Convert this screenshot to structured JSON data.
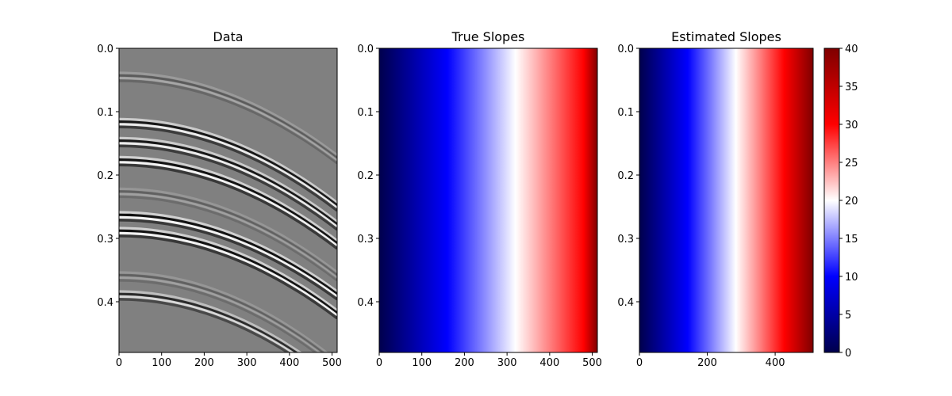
{
  "chart_data": [
    {
      "type": "heatmap",
      "title": "Data",
      "colormap": "gray",
      "xlim": [
        0,
        512
      ],
      "ylim": [
        0.48,
        0.0
      ],
      "xticks": [
        0,
        100,
        200,
        300,
        400,
        500
      ],
      "yticks": [
        0.0,
        0.1,
        0.2,
        0.3,
        0.4
      ],
      "xtick_labels": [
        "0",
        "100",
        "200",
        "300",
        "400",
        "500"
      ],
      "ytick_labels": [
        "0.0",
        "0.1",
        "0.2",
        "0.3",
        "0.4"
      ],
      "events": [
        {
          "t0": 0.045,
          "t_end": 0.175,
          "amplitude": 0.3
        },
        {
          "t0": 0.118,
          "t_end": 0.25,
          "amplitude": 0.85
        },
        {
          "t0": 0.148,
          "t_end": 0.28,
          "amplitude": 0.85
        },
        {
          "t0": 0.178,
          "t_end": 0.31,
          "amplitude": 0.9
        },
        {
          "t0": 0.228,
          "t_end": 0.36,
          "amplitude": 0.25
        },
        {
          "t0": 0.265,
          "t_end": 0.39,
          "amplitude": 0.9
        },
        {
          "t0": 0.29,
          "t_end": 0.42,
          "amplitude": 0.9
        },
        {
          "t0": 0.36,
          "t_end": 0.5,
          "amplitude": 0.25
        },
        {
          "t0": 0.39,
          "t_end": 0.53,
          "amplitude": 0.7
        }
      ]
    },
    {
      "type": "heatmap",
      "title": "True Slopes",
      "colormap": "seismic",
      "vmin": 0,
      "vmax": 40,
      "xlim": [
        0,
        512
      ],
      "ylim": [
        0.48,
        0.0
      ],
      "xticks": [
        0,
        100,
        200,
        300,
        400,
        500
      ],
      "yticks": [
        0.0,
        0.1,
        0.2,
        0.3,
        0.4
      ],
      "xtick_labels": [
        "0",
        "100",
        "200",
        "300",
        "400",
        "500"
      ],
      "ytick_labels": [
        "0.0",
        "0.1",
        "0.2",
        "0.3",
        "0.4"
      ],
      "slope_at_x0": 0,
      "slope_at_xmax": 32
    },
    {
      "type": "heatmap",
      "title": "Estimated Slopes",
      "colormap": "seismic",
      "vmin": 0,
      "vmax": 40,
      "xlim": [
        0,
        512
      ],
      "ylim": [
        0.48,
        0.0
      ],
      "xticks": [
        0,
        200,
        400
      ],
      "yticks": [
        0.0,
        0.1,
        0.2,
        0.3,
        0.4
      ],
      "xtick_labels": [
        "0",
        "200",
        "400"
      ],
      "ytick_labels": [
        "0.0",
        "0.1",
        "0.2",
        "0.3",
        "0.4"
      ],
      "slope_at_x0": 0,
      "slope_at_xmax": 36
    }
  ],
  "colorbar": {
    "colormap": "seismic",
    "vmin": 0,
    "vmax": 40,
    "ticks": [
      0,
      5,
      10,
      15,
      20,
      25,
      30,
      35,
      40
    ],
    "tick_labels": [
      "0",
      "5",
      "10",
      "15",
      "20",
      "25",
      "30",
      "35",
      "40"
    ]
  }
}
